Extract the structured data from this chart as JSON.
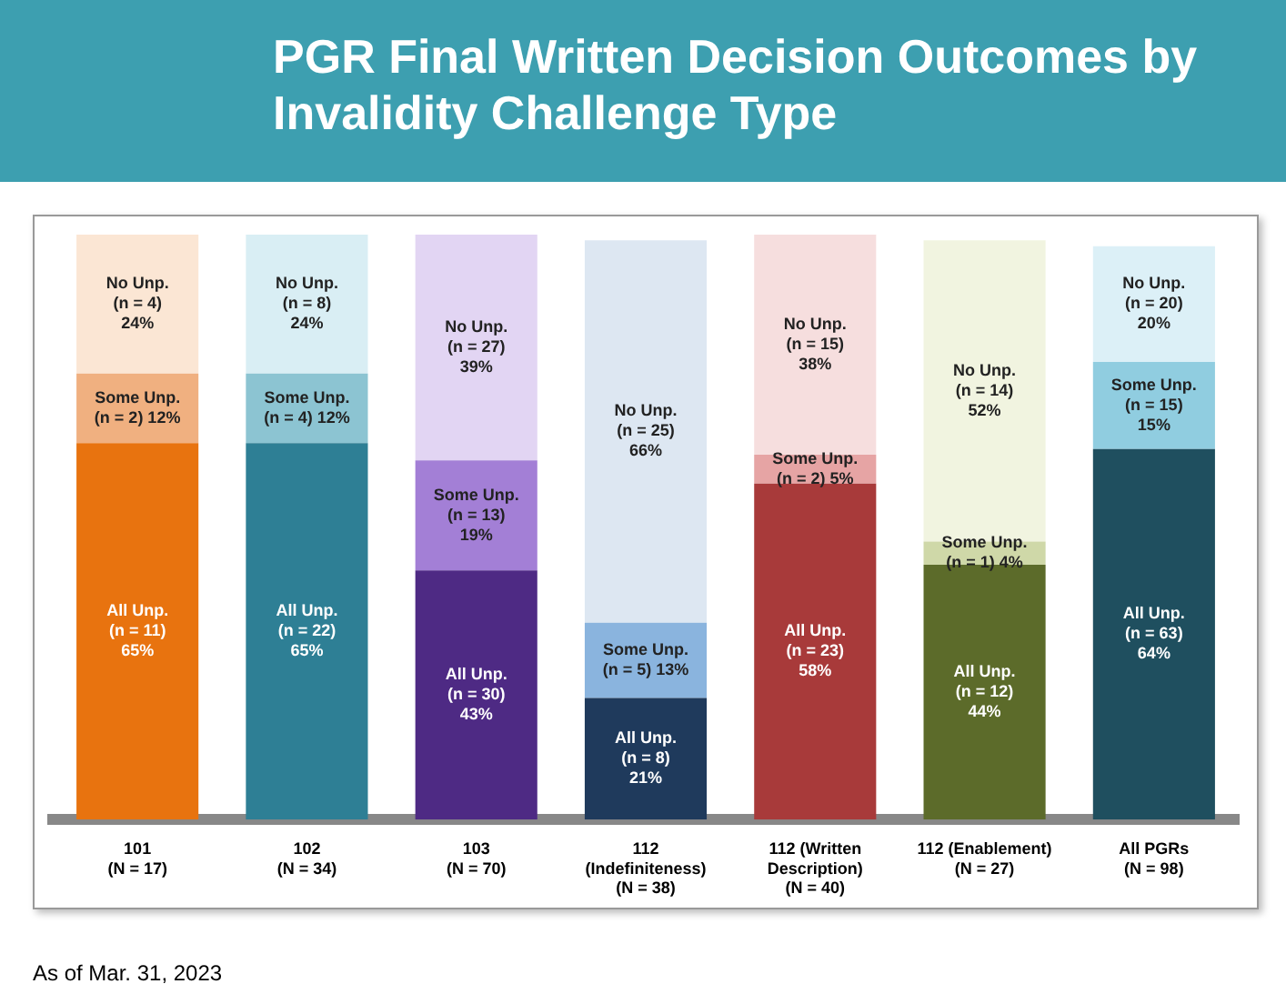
{
  "chart_data": {
    "type": "bar",
    "stacked": true,
    "title": "PGR Final Written Decision Outcomes by Invalidity Challenge Type",
    "categories": [
      "101\n(N = 17)",
      "102\n(N = 34)",
      "103\n(N = 70)",
      "112\n(Indefiniteness)\n(N = 38)",
      "112 (Written\nDescription)\n(N = 40)",
      "112 (Enablement)\n(N = 27)",
      "All PGRs\n(N = 98)"
    ],
    "series": [
      {
        "colors": [
          "#e8730f",
          "#2e7f95",
          "#4e2a84",
          "#1f3a5c",
          "#a83a3a",
          "#5c6b2a",
          "#1f4f5f"
        ],
        "values": [
          65,
          65,
          43,
          21,
          58,
          44,
          64
        ],
        "value_labels": [
          "All Unp.\n(n = 11)\n65%",
          "All Unp.\n(n = 22)\n65%",
          "All Unp.\n(n = 30)\n43%",
          "All Unp.\n(n = 8)\n21%",
          "All Unp.\n(n = 23)\n58%",
          "All Unp.\n(n = 12)\n44%",
          "All Unp.\n(n = 63)\n64%"
        ]
      },
      {
        "colors": [
          "#f0b080",
          "#8cc4d2",
          "#a37fd6",
          "#8ab4de",
          "#e6a4a4",
          "#cfd8a8",
          "#90cde0"
        ],
        "values": [
          12,
          12,
          19,
          13,
          5,
          4,
          15
        ],
        "value_labels": [
          "Some Unp.\n(n = 2) 12%",
          "Some Unp.\n(n = 4) 12%",
          "Some Unp.\n(n = 13)\n19%",
          "Some Unp.\n(n = 5) 13%",
          "Some Unp.\n(n = 2) 5%",
          "Some Unp.\n(n = 1) 4%",
          "Some Unp.\n(n = 15)\n15%"
        ]
      },
      {
        "colors": [
          "#fbe6d4",
          "#d9eef4",
          "#e2d5f3",
          "#dde7f2",
          "#f6dede",
          "#f1f4e0",
          "#dcf0f7"
        ],
        "values": [
          24,
          24,
          39,
          66,
          38,
          52,
          20
        ],
        "value_labels": [
          "No Unp.\n(n = 4)\n24%",
          "No Unp.\n(n = 8)\n24%",
          "No Unp.\n(n = 27)\n39%",
          "No Unp.\n(n = 25)\n66%",
          "No Unp.\n(n = 15)\n38%",
          "No Unp.\n(n = 14)\n52%",
          "No Unp.\n(n = 20)\n20%"
        ]
      }
    ],
    "annotations": [
      "As of Mar. 31, 2023"
    ]
  }
}
